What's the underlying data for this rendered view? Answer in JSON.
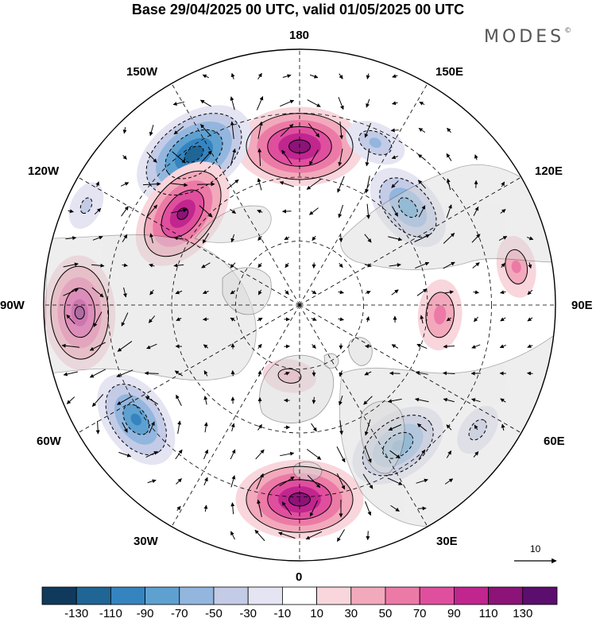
{
  "title": "Base 29/04/2025 00 UTC, valid 01/05/2025 00 UTC",
  "brand": {
    "name": "MODES",
    "mark": "©"
  },
  "lon_labels": {
    "n": "180",
    "s": "0",
    "e": "90E",
    "w": "90W",
    "ne1": "150E",
    "ne2": "120E",
    "nw1": "150W",
    "nw2": "120W",
    "se1": "60E",
    "se2": "30E",
    "sw1": "60W",
    "sw2": "30W"
  },
  "vector_reference": {
    "value": "10"
  },
  "colorbar": {
    "levels": [
      "-130",
      "-110",
      "-90",
      "-70",
      "-50",
      "-30",
      "-10",
      "10",
      "30",
      "50",
      "70",
      "90",
      "110",
      "130"
    ],
    "colors": [
      "#0f3a5c",
      "#1f6596",
      "#3584c0",
      "#5ea1d0",
      "#93b6de",
      "#c3cbe6",
      "#e4e4f2",
      "#ffffff",
      "#f8d6dc",
      "#f2a9bb",
      "#ec7aa6",
      "#e04f9e",
      "#c1258e",
      "#8c1377",
      "#5c0e6e"
    ]
  },
  "anomaly_centers": [
    {
      "lon": 180,
      "colat": 0.62,
      "value": 110
    },
    {
      "lon": -145,
      "colat": 0.72,
      "value": -110
    },
    {
      "lon": -128,
      "colat": 0.58,
      "value": 100
    },
    {
      "lon": -88,
      "colat": 0.86,
      "value": 95
    },
    {
      "lon": -55,
      "colat": 0.78,
      "value": -80
    },
    {
      "lon": -115,
      "colat": 0.92,
      "value": -20
    },
    {
      "lon": -8,
      "colat": 0.28,
      "value": 25
    },
    {
      "lon": 0,
      "colat": 0.76,
      "value": 110
    },
    {
      "lon": 35,
      "colat": 0.67,
      "value": -80
    },
    {
      "lon": 86,
      "colat": 0.55,
      "value": 45
    },
    {
      "lon": 132,
      "colat": 0.57,
      "value": -70
    },
    {
      "lon": 155,
      "colat": 0.7,
      "value": -35
    },
    {
      "lon": 55,
      "colat": 0.85,
      "value": -25
    },
    {
      "lon": 100,
      "colat": 0.86,
      "value": 35
    }
  ]
}
